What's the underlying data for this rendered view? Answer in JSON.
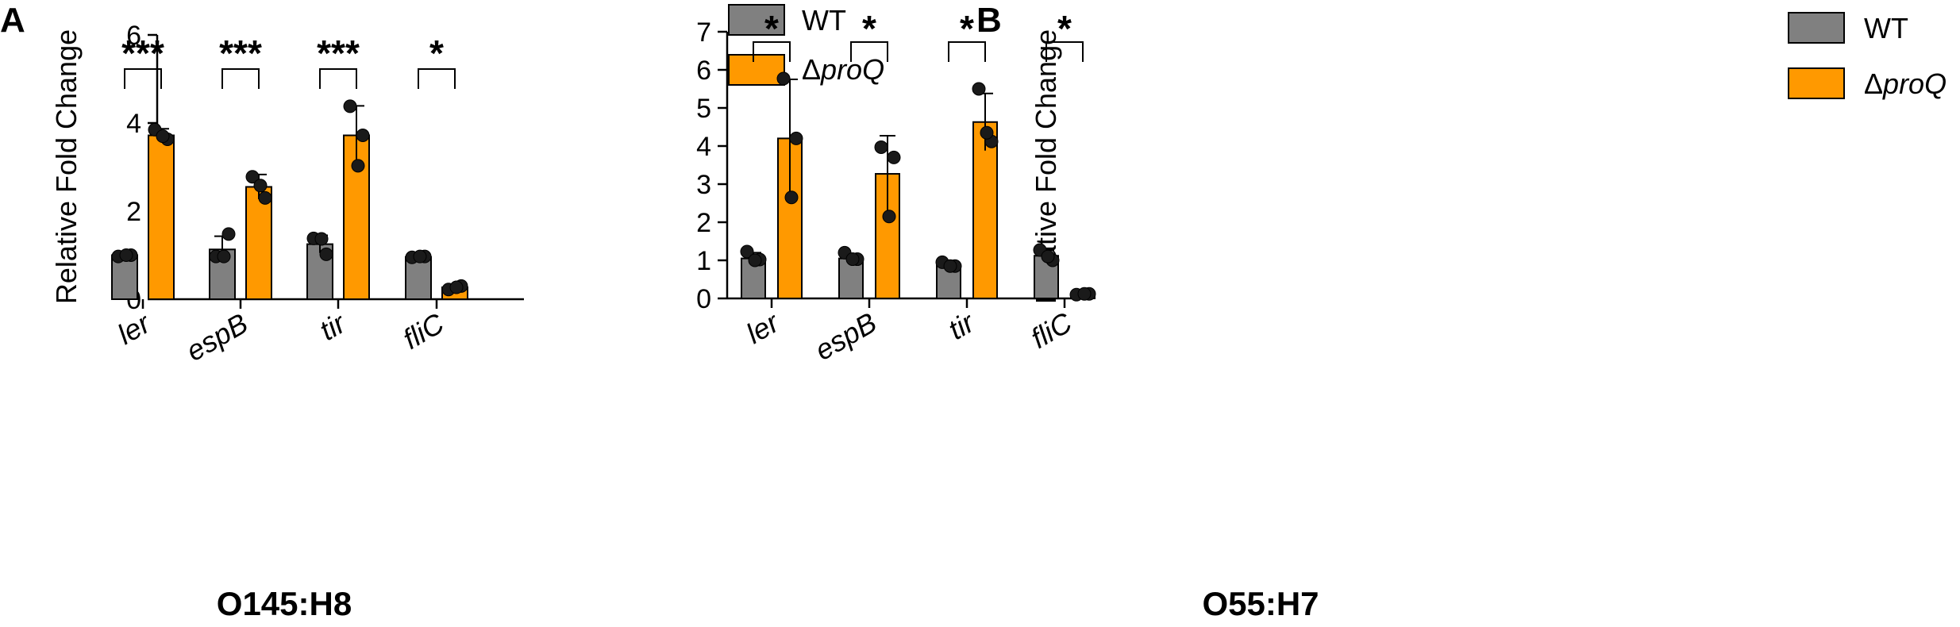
{
  "figure": {
    "legend": {
      "wt_label": "WT",
      "mut_prefix": "Δ",
      "mut_label": "proQ"
    },
    "colors": {
      "wt": "#808080",
      "mut": "#ff9900",
      "point": "#1a1a1a",
      "stroke": "#000000"
    }
  },
  "chart_data": [
    {
      "panel": "A",
      "type": "bar",
      "title": "O145:H8",
      "xlabel": "",
      "ylabel": "Relative Fold Change",
      "ylim": [
        0,
        6
      ],
      "yticks": [
        0,
        2,
        4,
        6
      ],
      "categories": [
        "ler",
        "espB",
        "tir",
        "fliC"
      ],
      "series": [
        {
          "name": "WT",
          "values": [
            1.0,
            1.13,
            1.25,
            0.96
          ],
          "errors": [
            0.04,
            0.3,
            0.2,
            0.04
          ],
          "points": [
            [
              0.97,
              1.0,
              1.0
            ],
            [
              0.97,
              1.48,
              0.97
            ],
            [
              1.38,
              1.02,
              1.37
            ],
            [
              0.95,
              0.97,
              0.97
            ]
          ]
        },
        {
          "name": "ΔproQ",
          "values": [
            3.72,
            2.55,
            3.72,
            0.27
          ],
          "errors": [
            0.15,
            0.28,
            0.67,
            0.05
          ],
          "points": [
            [
              3.85,
              3.63,
              3.7
            ],
            [
              2.78,
              2.3,
              2.58
            ],
            [
              4.38,
              3.72,
              3.03
            ],
            [
              0.22,
              0.3,
              0.27
            ]
          ]
        }
      ],
      "significance": [
        "***",
        "***",
        "***",
        "*"
      ]
    },
    {
      "panel": "B",
      "type": "bar",
      "title": "O55:H7",
      "xlabel": "",
      "ylabel": "Relative Fold Change",
      "ylim": [
        0,
        7
      ],
      "yticks": [
        0,
        1,
        2,
        3,
        4,
        5,
        6,
        7
      ],
      "categories": [
        "ler",
        "espB",
        "tir",
        "fliC"
      ],
      "series": [
        {
          "name": "WT",
          "values": [
            1.05,
            1.05,
            0.87,
            1.12
          ],
          "errors": [
            0.15,
            0.12,
            0.1,
            0.15
          ],
          "points": [
            [
              1.23,
              1.02,
              1.0
            ],
            [
              1.2,
              1.03,
              1.03
            ],
            [
              0.95,
              0.85,
              0.85
            ],
            [
              1.27,
              1.0,
              1.1
            ]
          ]
        },
        {
          "name": "ΔproQ",
          "values": [
            4.2,
            3.27,
            4.63,
            0.12
          ],
          "errors": [
            1.55,
            1.0,
            0.75,
            0.03
          ],
          "points": [
            [
              5.77,
              4.2,
              2.65
            ],
            [
              3.97,
              3.7,
              2.15
            ],
            [
              5.5,
              4.12,
              4.35
            ],
            [
              0.1,
              0.12,
              0.12
            ]
          ]
        }
      ],
      "significance": [
        "*",
        "*",
        "*",
        "*"
      ]
    }
  ]
}
